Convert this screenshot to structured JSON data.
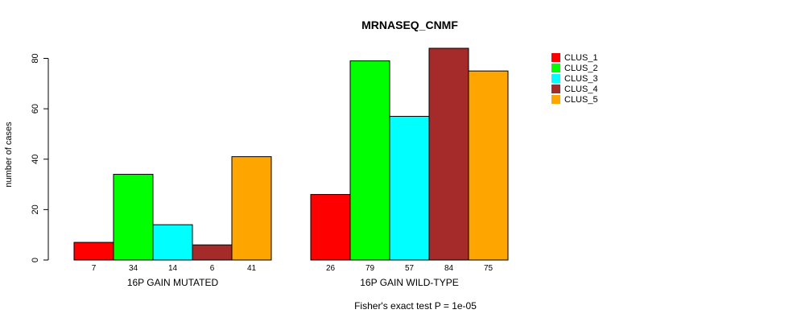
{
  "chart_data": {
    "type": "bar",
    "title": "MRNASEQ_CNMF",
    "ylabel": "number of cases",
    "xlabel": "",
    "footer": "Fisher's exact test P = 1e-05",
    "ylim": [
      0,
      80
    ],
    "yticks": [
      0,
      20,
      40,
      60,
      80
    ],
    "groups": [
      "16P GAIN MUTATED",
      "16P GAIN WILD-TYPE"
    ],
    "series": [
      {
        "name": "CLUS_1",
        "color": "#ff0000",
        "values": [
          7,
          26
        ]
      },
      {
        "name": "CLUS_2",
        "color": "#00ff00",
        "values": [
          34,
          79
        ]
      },
      {
        "name": "CLUS_3",
        "color": "#00ffff",
        "values": [
          14,
          57
        ]
      },
      {
        "name": "CLUS_4",
        "color": "#a52a2a",
        "values": [
          6,
          84
        ]
      },
      {
        "name": "CLUS_5",
        "color": "#ffa500",
        "values": [
          41,
          75
        ]
      }
    ],
    "legend_position": "top-right",
    "grid": false
  }
}
